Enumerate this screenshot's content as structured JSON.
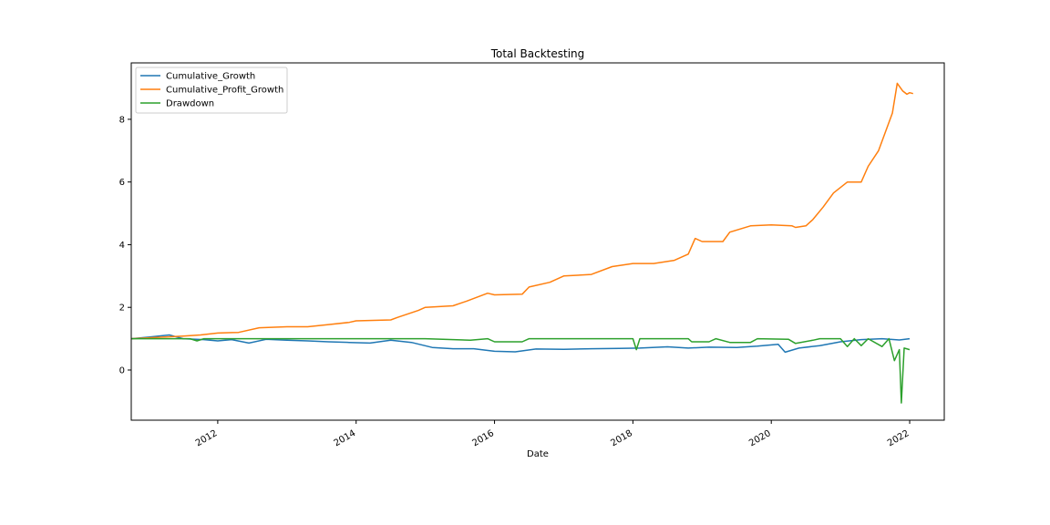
{
  "chart_data": {
    "type": "line",
    "title": "Total Backtesting",
    "xlabel": "Date",
    "ylabel": "",
    "xlim": [
      2010.75,
      2022.5
    ],
    "ylim": [
      -1.6,
      9.8
    ],
    "x_ticks": [
      2012,
      2014,
      2016,
      2018,
      2020,
      2022
    ],
    "x_tick_labels": [
      "2012",
      "2014",
      "2016",
      "2018",
      "2020",
      "2022"
    ],
    "y_ticks": [
      0,
      2,
      4,
      6,
      8
    ],
    "y_tick_labels": [
      "0",
      "2",
      "4",
      "6",
      "8"
    ],
    "grid": false,
    "legend_position": "top-left",
    "series": [
      {
        "name": "Cumulative_Growth",
        "color": "#1f77b4",
        "points": [
          [
            2010.75,
            1.0
          ],
          [
            2011.0,
            1.05
          ],
          [
            2011.3,
            1.12
          ],
          [
            2011.5,
            1.0
          ],
          [
            2011.8,
            0.97
          ],
          [
            2012.0,
            0.93
          ],
          [
            2012.2,
            0.97
          ],
          [
            2012.45,
            0.86
          ],
          [
            2012.7,
            0.98
          ],
          [
            2013.0,
            0.95
          ],
          [
            2013.3,
            0.93
          ],
          [
            2013.6,
            0.9
          ],
          [
            2013.9,
            0.88
          ],
          [
            2014.2,
            0.86
          ],
          [
            2014.5,
            0.95
          ],
          [
            2014.8,
            0.88
          ],
          [
            2015.1,
            0.72
          ],
          [
            2015.4,
            0.68
          ],
          [
            2015.7,
            0.68
          ],
          [
            2016.0,
            0.6
          ],
          [
            2016.3,
            0.58
          ],
          [
            2016.6,
            0.67
          ],
          [
            2017.0,
            0.66
          ],
          [
            2017.4,
            0.68
          ],
          [
            2017.8,
            0.69
          ],
          [
            2018.1,
            0.7
          ],
          [
            2018.5,
            0.74
          ],
          [
            2018.8,
            0.7
          ],
          [
            2019.1,
            0.73
          ],
          [
            2019.5,
            0.72
          ],
          [
            2019.8,
            0.76
          ],
          [
            2020.1,
            0.82
          ],
          [
            2020.2,
            0.57
          ],
          [
            2020.4,
            0.7
          ],
          [
            2020.7,
            0.78
          ],
          [
            2021.0,
            0.9
          ],
          [
            2021.3,
            0.97
          ],
          [
            2021.6,
            1.0
          ],
          [
            2021.85,
            0.96
          ],
          [
            2022.0,
            1.0
          ]
        ]
      },
      {
        "name": "Cumulative_Profit_Growth",
        "color": "#ff7f0e",
        "points": [
          [
            2010.75,
            1.0
          ],
          [
            2011.5,
            1.08
          ],
          [
            2011.75,
            1.12
          ],
          [
            2012.0,
            1.18
          ],
          [
            2012.3,
            1.2
          ],
          [
            2012.6,
            1.35
          ],
          [
            2013.0,
            1.38
          ],
          [
            2013.3,
            1.38
          ],
          [
            2013.6,
            1.45
          ],
          [
            2013.9,
            1.52
          ],
          [
            2014.0,
            1.57
          ],
          [
            2014.5,
            1.6
          ],
          [
            2014.6,
            1.68
          ],
          [
            2014.9,
            1.9
          ],
          [
            2015.0,
            2.0
          ],
          [
            2015.4,
            2.05
          ],
          [
            2015.6,
            2.2
          ],
          [
            2015.9,
            2.45
          ],
          [
            2016.0,
            2.4
          ],
          [
            2016.4,
            2.42
          ],
          [
            2016.5,
            2.65
          ],
          [
            2016.8,
            2.8
          ],
          [
            2017.0,
            3.0
          ],
          [
            2017.4,
            3.05
          ],
          [
            2017.7,
            3.3
          ],
          [
            2018.0,
            3.4
          ],
          [
            2018.3,
            3.4
          ],
          [
            2018.6,
            3.5
          ],
          [
            2018.8,
            3.7
          ],
          [
            2018.9,
            4.2
          ],
          [
            2019.0,
            4.1
          ],
          [
            2019.3,
            4.1
          ],
          [
            2019.4,
            4.4
          ],
          [
            2019.7,
            4.6
          ],
          [
            2020.0,
            4.63
          ],
          [
            2020.3,
            4.6
          ],
          [
            2020.35,
            4.55
          ],
          [
            2020.5,
            4.6
          ],
          [
            2020.6,
            4.8
          ],
          [
            2020.75,
            5.2
          ],
          [
            2020.9,
            5.65
          ],
          [
            2021.1,
            6.0
          ],
          [
            2021.3,
            6.0
          ],
          [
            2021.4,
            6.5
          ],
          [
            2021.55,
            7.0
          ],
          [
            2021.65,
            7.6
          ],
          [
            2021.75,
            8.2
          ],
          [
            2021.82,
            9.15
          ],
          [
            2021.9,
            8.9
          ],
          [
            2021.96,
            8.8
          ],
          [
            2022.0,
            8.85
          ],
          [
            2022.05,
            8.82
          ]
        ]
      },
      {
        "name": "Drawdown",
        "color": "#2ca02c",
        "points": [
          [
            2010.75,
            1.0
          ],
          [
            2011.6,
            1.0
          ],
          [
            2011.7,
            0.93
          ],
          [
            2011.8,
            1.0
          ],
          [
            2015.0,
            1.0
          ],
          [
            2015.65,
            0.95
          ],
          [
            2015.9,
            1.0
          ],
          [
            2016.0,
            0.9
          ],
          [
            2016.4,
            0.9
          ],
          [
            2016.5,
            1.0
          ],
          [
            2018.0,
            1.0
          ],
          [
            2018.05,
            0.65
          ],
          [
            2018.1,
            1.0
          ],
          [
            2018.8,
            1.0
          ],
          [
            2018.85,
            0.9
          ],
          [
            2019.1,
            0.9
          ],
          [
            2019.2,
            1.0
          ],
          [
            2019.4,
            0.88
          ],
          [
            2019.7,
            0.88
          ],
          [
            2019.8,
            1.0
          ],
          [
            2020.25,
            0.98
          ],
          [
            2020.35,
            0.85
          ],
          [
            2020.6,
            0.95
          ],
          [
            2020.7,
            1.0
          ],
          [
            2021.0,
            1.0
          ],
          [
            2021.1,
            0.75
          ],
          [
            2021.2,
            1.0
          ],
          [
            2021.3,
            0.78
          ],
          [
            2021.4,
            1.0
          ],
          [
            2021.6,
            0.75
          ],
          [
            2021.7,
            1.0
          ],
          [
            2021.78,
            0.3
          ],
          [
            2021.85,
            0.65
          ],
          [
            2021.88,
            -1.05
          ],
          [
            2021.92,
            0.7
          ],
          [
            2022.0,
            0.65
          ]
        ]
      }
    ]
  }
}
